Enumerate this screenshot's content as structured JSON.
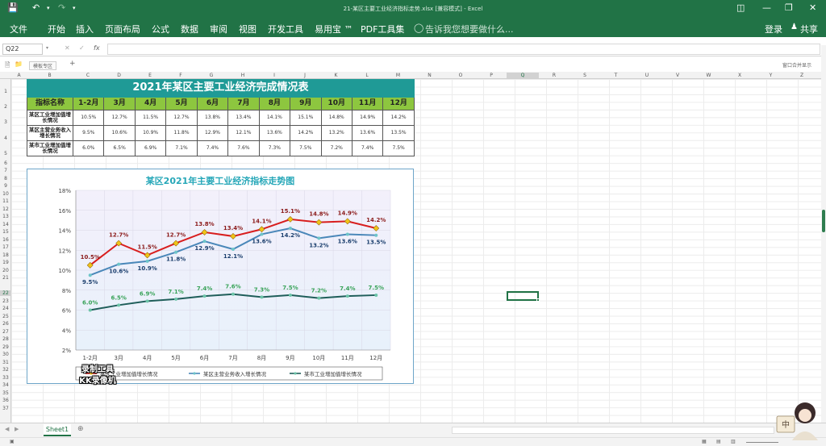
{
  "window": {
    "title": "21-某区主要工业经济指标走势.xlsx  [兼容模式] - Excel",
    "login": "登录",
    "share": "共享"
  },
  "ribbon": {
    "tabs": [
      "文件",
      "开始",
      "插入",
      "页面布局",
      "公式",
      "数据",
      "审阅",
      "视图",
      "开发工具",
      "易用宝 ™",
      "PDF工具集"
    ],
    "tellme": "告诉我您想要做什么..."
  },
  "formula_bar": {
    "name_box": "Q22",
    "fx": "fx",
    "value": ""
  },
  "sheet_bar": {
    "tab_label": "模板专区",
    "right_label": "窗口合并显示"
  },
  "columns": [
    "A",
    "B",
    "C",
    "D",
    "E",
    "F",
    "G",
    "H",
    "I",
    "J",
    "K",
    "L",
    "M",
    "N",
    "O",
    "P",
    "Q",
    "R",
    "S",
    "T",
    "U",
    "V",
    "W",
    "X",
    "Y",
    "Z"
  ],
  "rows": [
    "1",
    "2",
    "3",
    "4",
    "5",
    "6",
    "7",
    "8",
    "9",
    "10",
    "11",
    "12",
    "13",
    "14",
    "15",
    "16",
    "17",
    "18",
    "19",
    "20",
    "21",
    "22",
    "23",
    "24",
    "25",
    "26",
    "27",
    "28",
    "29",
    "30",
    "31",
    "32",
    "33",
    "34",
    "35",
    "36",
    "37"
  ],
  "table": {
    "title": "2021年某区主要工业经济完成情况表",
    "header": [
      "指标名称",
      "1-2月",
      "3月",
      "4月",
      "5月",
      "6月",
      "7月",
      "8月",
      "9月",
      "10月",
      "11月",
      "12月"
    ],
    "rows": [
      {
        "name": "某区工业增加值增长情况",
        "values": [
          "10.5%",
          "12.7%",
          "11.5%",
          "12.7%",
          "13.8%",
          "13.4%",
          "14.1%",
          "15.1%",
          "14.8%",
          "14.9%",
          "14.2%"
        ]
      },
      {
        "name": "某区主营业务收入增长情况",
        "values": [
          "9.5%",
          "10.6%",
          "10.9%",
          "11.8%",
          "12.9%",
          "12.1%",
          "13.6%",
          "14.2%",
          "13.2%",
          "13.6%",
          "13.5%"
        ]
      },
      {
        "name": "某市工业增加值增长情况",
        "values": [
          "6.0%",
          "6.5%",
          "6.9%",
          "7.1%",
          "7.4%",
          "7.6%",
          "7.3%",
          "7.5%",
          "7.2%",
          "7.4%",
          "7.5%"
        ]
      }
    ]
  },
  "chart_data": {
    "type": "line",
    "title": "某区2021年主要工业经济指标走势图",
    "categories": [
      "1-2月",
      "3月",
      "4月",
      "5月",
      "6月",
      "7月",
      "8月",
      "9月",
      "10月",
      "11月",
      "12月"
    ],
    "ylim": [
      2,
      18
    ],
    "yticks": [
      "2%",
      "4%",
      "6%",
      "8%",
      "10%",
      "12%",
      "14%",
      "16%",
      "18%"
    ],
    "legend_position": "bottom",
    "series": [
      {
        "name": "某区工业增加值增长情况",
        "color": "#d81e1e",
        "marker": "#f0c419",
        "label_color": "#8b1a1a",
        "values": [
          10.5,
          12.7,
          11.5,
          12.7,
          13.8,
          13.4,
          14.1,
          15.1,
          14.8,
          14.9,
          14.2
        ],
        "labels": [
          "10.5%",
          "12.7%",
          "11.5%",
          "12.7%",
          "13.8%",
          "13.4%",
          "14.1%",
          "15.1%",
          "14.8%",
          "14.9%",
          "14.2%"
        ]
      },
      {
        "name": "某区主营业务收入增长情况",
        "color": "#4a87b9",
        "marker": "#6ec5c9",
        "label_color": "#1c3f6e",
        "values": [
          9.5,
          10.6,
          10.9,
          11.8,
          12.9,
          12.1,
          13.6,
          14.2,
          13.2,
          13.6,
          13.5
        ],
        "labels": [
          "9.5%",
          "10.6%",
          "10.9%",
          "11.8%",
          "12.9%",
          "12.1%",
          "13.6%",
          "14.2%",
          "13.2%",
          "13.6%",
          "13.5%"
        ]
      },
      {
        "name": "某市工业增加值增长情况",
        "color": "#1f5e5a",
        "marker": "#6ec5a9",
        "label_color": "#3aa35a",
        "values": [
          6.0,
          6.5,
          6.9,
          7.1,
          7.4,
          7.6,
          7.3,
          7.5,
          7.2,
          7.4,
          7.5
        ],
        "labels": [
          "6.0%",
          "6.5%",
          "6.9%",
          "7.1%",
          "7.4%",
          "7.6%",
          "7.3%",
          "7.5%",
          "7.2%",
          "7.4%",
          "7.5%"
        ]
      }
    ]
  },
  "sheet_tab": "Sheet1",
  "watermark": {
    "line1": "录制工具",
    "line2": "KK录像机"
  },
  "avatar_badge": "中"
}
